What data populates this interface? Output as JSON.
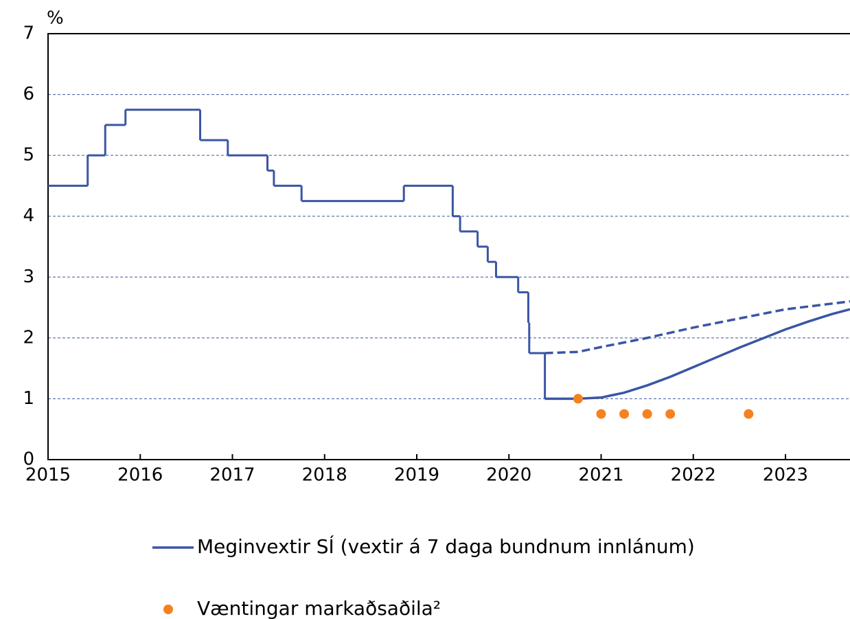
{
  "chart_data": {
    "type": "line",
    "y_label": "%",
    "xlim": [
      2015,
      2023.7
    ],
    "xticks": [
      2015,
      2016,
      2017,
      2018,
      2019,
      2020,
      2021,
      2022,
      2023
    ],
    "ylim": [
      0,
      7
    ],
    "yticks": [
      0,
      1,
      2,
      3,
      4,
      5,
      6,
      7
    ],
    "grid": true,
    "series": [
      {
        "name": "Meginvextir SÍ (vextir á 7 daga bundnum innlánum)",
        "type": "step",
        "color": "#3a55a4",
        "x": [
          2015.0,
          2015.43,
          2015.62,
          2015.84,
          2016.65,
          2016.95,
          2017.38,
          2017.45,
          2017.75,
          2018.86,
          2019.39,
          2019.47,
          2019.66,
          2019.77,
          2019.86,
          2020.1,
          2020.21,
          2020.22,
          2020.39
        ],
        "values": [
          4.5,
          5.0,
          5.5,
          5.75,
          5.25,
          5.0,
          4.75,
          4.5,
          4.25,
          4.5,
          4.0,
          3.75,
          3.5,
          3.25,
          3.0,
          2.75,
          2.25,
          1.75,
          1.0
        ]
      },
      {
        "type": "line",
        "color": "#3a55a4",
        "x": [
          2020.39,
          2020.75,
          2021.0,
          2021.25,
          2021.5,
          2021.75,
          2022.0,
          2022.25,
          2022.5,
          2022.75,
          2023.0,
          2023.25,
          2023.5,
          2023.7
        ],
        "values": [
          1.0,
          1.0,
          1.02,
          1.1,
          1.22,
          1.36,
          1.52,
          1.68,
          1.84,
          1.99,
          2.14,
          2.27,
          2.39,
          2.47
        ]
      },
      {
        "type": "line",
        "color": "#3a55a4",
        "dashed": true,
        "x": [
          2020.39,
          2020.75,
          2021.0,
          2021.5,
          2022.0,
          2022.5,
          2023.0,
          2023.7
        ],
        "values": [
          1.75,
          1.77,
          1.85,
          2.0,
          2.17,
          2.32,
          2.47,
          2.6
        ]
      },
      {
        "name": "Væntingar markaðsaðila²",
        "type": "scatter",
        "color": "#f5821f",
        "x": [
          2020.75,
          2021.0,
          2021.25,
          2021.5,
          2021.75,
          2022.6
        ],
        "values": [
          1.0,
          0.75,
          0.75,
          0.75,
          0.75,
          0.75
        ]
      }
    ]
  }
}
